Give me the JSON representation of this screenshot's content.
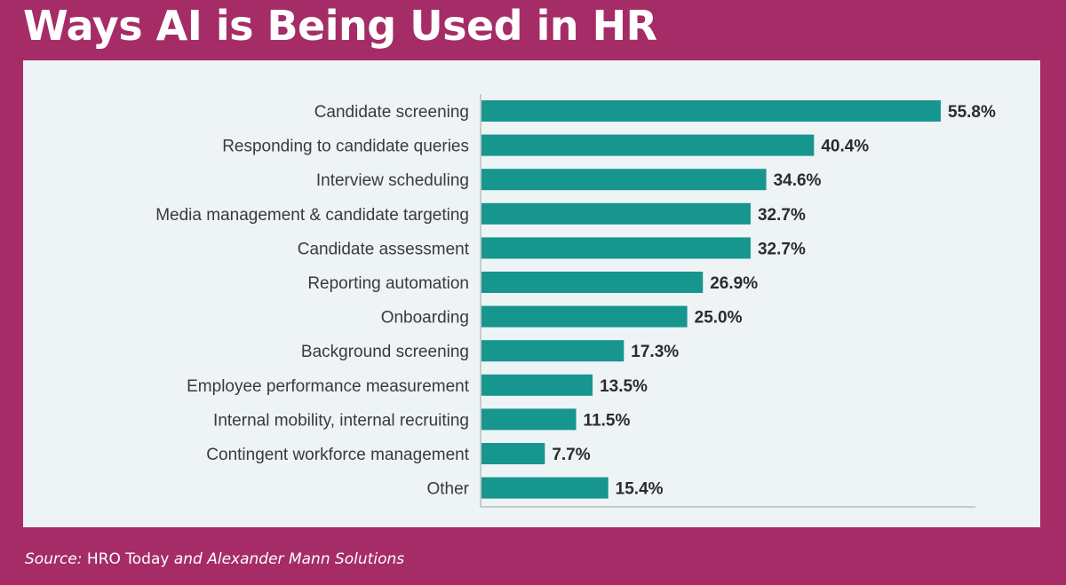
{
  "title": "Ways AI is Being Used in HR",
  "source": {
    "prefix": "Source:",
    "publication": "HRO Today",
    "rest": "and Alexander Mann Solutions"
  },
  "colors": {
    "bar": "#17958f",
    "background": "#a52c67",
    "panel": "#eef3f5"
  },
  "chart_data": {
    "type": "bar",
    "orientation": "horizontal",
    "categories": [
      "Candidate screening",
      "Responding to candidate queries",
      "Interview scheduling",
      "Media management & candidate targeting",
      "Candidate assessment",
      "Reporting automation",
      "Onboarding",
      "Background screening",
      "Employee performance measurement",
      "Internal mobility, internal recruiting",
      "Contingent workforce management",
      "Other"
    ],
    "values": [
      55.8,
      40.4,
      34.6,
      32.7,
      32.7,
      26.9,
      25.0,
      17.3,
      13.5,
      11.5,
      7.7,
      15.4
    ],
    "value_labels": [
      "55.8%",
      "40.4%",
      "34.6%",
      "32.7%",
      "32.7%",
      "26.9%",
      "25.0%",
      "17.3%",
      "13.5%",
      "11.5%",
      "7.7%",
      "15.4%"
    ],
    "title": "",
    "xlabel": "",
    "ylabel": "",
    "xlim": [
      0,
      60
    ],
    "grid": false,
    "legend": "none"
  }
}
